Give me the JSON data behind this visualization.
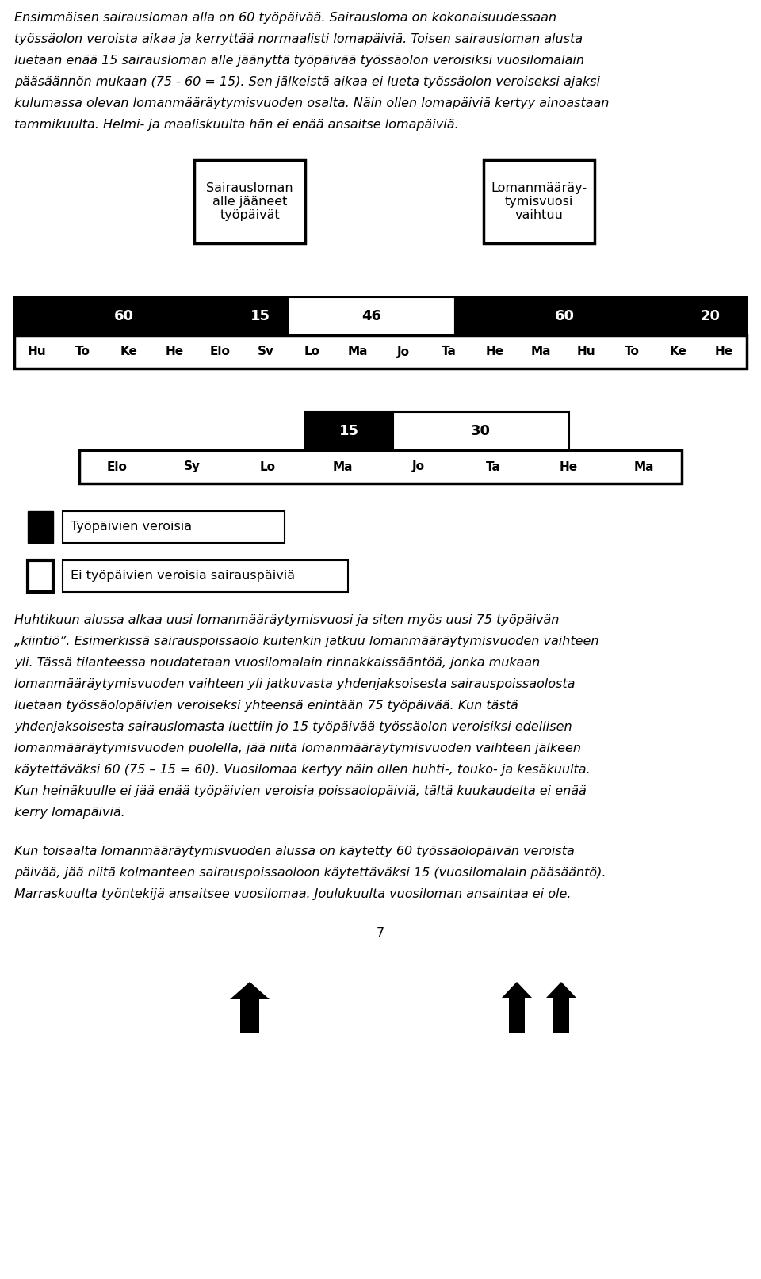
{
  "text_intro": "Ensimmäisen sairausloman alla on 60 työpäivää. Sairausloma on kokonaisuudessaan\ntyössäolon veroista aikaa ja kerryttää normaalisti lomapäiviä. Toisen sairausloman alusta\nluetaan enää 15 sairausloman alle jäänyttä työpäivää työssäolon veroisiksi vuosilomalain\npääsäännön mukaan (75 - 60 = 15). Sen jälkeistä aikaa ei lueta työssäolon veroiseksi ajaksi\nkulumassa olevan lomanmääräytymisvuoden osalta. Näin ollen lomapäiviä kertyy ainoastaan\ntammikuulta. Helmi- ja maaliskuulta hän ei enää ansaitse lomapäiviä.",
  "box1_text": "Sairausloman\nalle jääneet\ntyöpäivät",
  "box2_text": "Lomanmääräy-\ntymisvuosi\nvaihtuu",
  "row1_segments": [
    {
      "value": "60",
      "color": "#000000",
      "text_color": "#ffffff"
    },
    {
      "value": "15",
      "color": "#000000",
      "text_color": "#ffffff"
    },
    {
      "value": "46",
      "color": "#ffffff",
      "text_color": "#000000"
    },
    {
      "value": "60",
      "color": "#000000",
      "text_color": "#ffffff"
    },
    {
      "value": "20",
      "color": "#000000",
      "text_color": "#ffffff"
    }
  ],
  "row1_months": [
    "Hu",
    "To",
    "Ke",
    "He",
    "Elo",
    "Sv",
    "Lo",
    "Ma",
    "Jo",
    "Ta",
    "He",
    "Ma",
    "Hu",
    "To",
    "Ke",
    "He"
  ],
  "row2_segments": [
    {
      "value": "15",
      "color": "#000000",
      "text_color": "#ffffff"
    },
    {
      "value": "30",
      "color": "#ffffff",
      "text_color": "#000000"
    }
  ],
  "row2_months": [
    "Elo",
    "Sy",
    "Lo",
    "Ma",
    "Jo",
    "Ta",
    "He",
    "Ma"
  ],
  "legend_black_text": "Työpäivien veroisia",
  "legend_white_text": "Ei työpäivien veroisia sairauspäiviä",
  "text_body": "Huhtikuun alussa alkaa uusi lomanmääräytymisvuosi ja siten myös uusi 75 työpäivän\n„kiintiö”. Esimerkissä sairauspoissaolo kuitenkin jatkuu lomanmääräytymisvuoden vaihteen\nyli. Tässä tilanteessa noudatetaan vuosilomalain rinnakkaissääntöä, jonka mukaan\nlomanmääräytymisvuoden vaihteen yli jatkuvasta yhdenjaksoisesta sairauspoissaolosta\nluetaan työssäolopäivien veroiseksi yhteensä enintään 75 työpäivää. Kun tästä\nyhdenjaksoisesta sairauslomasta luettiin jo 15 työpäivää työssäolon veroisiksi edellisen\nlomanmääräytymisvuoden puolella, jää niitä lomanmääräytymisvuoden vaihteen jälkeen\nkäytettäväksi 60 (75 – 15 = 60). Vuosilomaa kertyy näin ollen huhti-, touko- ja kesäkuulta.\nKun heinäkuulle ei jää enää työpäivien veroisia poissaolopäiviä, tältä kuukaudelta ei enää\nkerry lomapäiviä.",
  "text_footer": "Kun toisaalta lomanmääräytymisvuoden alussa on käytetty 60 työssäolopäivän veroista\npäivää, jää niitä kolmanteen sairauspoissaoloon käytettäväksi 15 (vuosilomalain pääsääntö).\nMarraskuulta työntekijä ansaitsee vuosilomaa. Joulukuulta vuosiloman ansaintaa ei ole.",
  "page_number": "7",
  "background_color": "#ffffff"
}
